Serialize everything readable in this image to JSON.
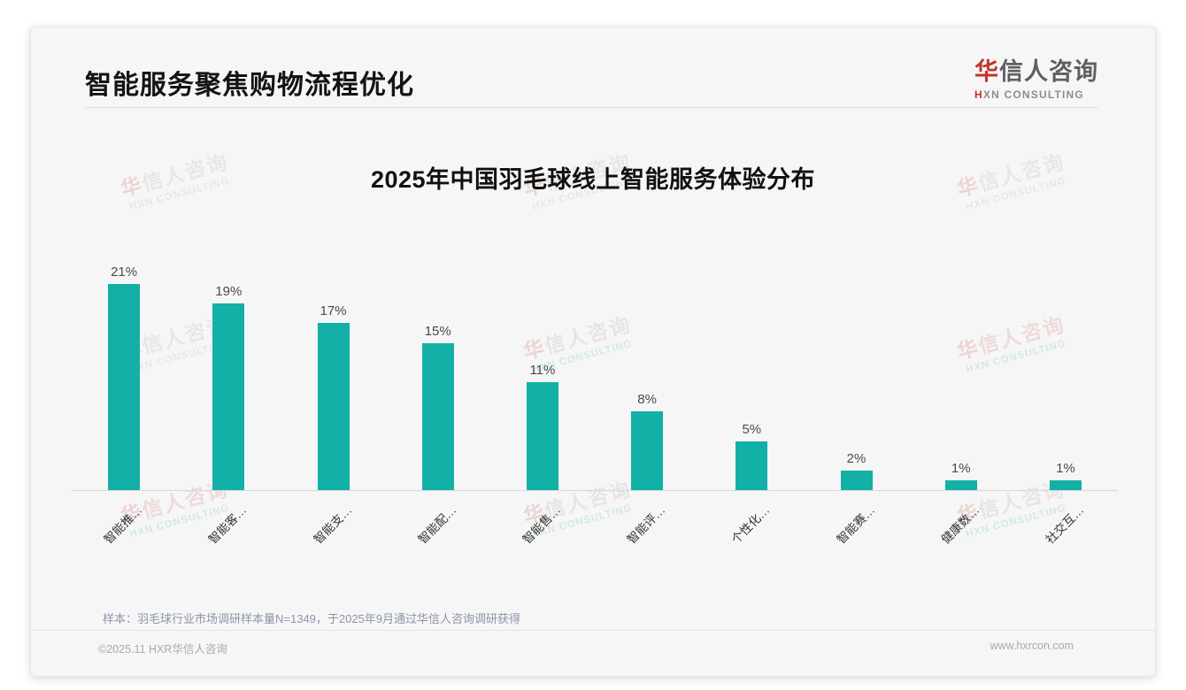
{
  "page": {
    "header": {
      "title": "智能服务聚焦购物流程优化"
    },
    "logo": {
      "cn_first": "华",
      "cn_rest": "信人咨询",
      "en_first": "H",
      "en_rest": "XN CONSULTING"
    },
    "watermark": {
      "line1_first": "华",
      "line1_rest": "信人咨询",
      "line2": "HXN CONSULTING"
    },
    "footnote": "样本：羽毛球行业市场调研样本量N=1349，于2025年9月通过华信人咨询调研获得",
    "footer": {
      "left": "©2025.11 HXR华信人咨询",
      "right": "www.hxrcon.com"
    }
  },
  "chart_data": {
    "type": "bar",
    "title": "2025年中国羽毛球线上智能服务体验分布",
    "categories": [
      "智能推…",
      "智能客…",
      "智能支…",
      "智能配…",
      "智能售…",
      "智能评…",
      "个性化…",
      "智能赛…",
      "健康数…",
      "社交互…"
    ],
    "values": [
      21,
      19,
      17,
      15,
      11,
      8,
      5,
      2,
      1,
      1
    ],
    "value_labels": [
      "21%",
      "19%",
      "17%",
      "15%",
      "11%",
      "8%",
      "5%",
      "2%",
      "1%",
      "1%"
    ],
    "bar_color": "#12b0a6",
    "xlabel": "",
    "ylabel": "",
    "ylim": [
      0,
      23
    ],
    "grid": false,
    "legend": false,
    "x_tick_rotation": 45
  }
}
